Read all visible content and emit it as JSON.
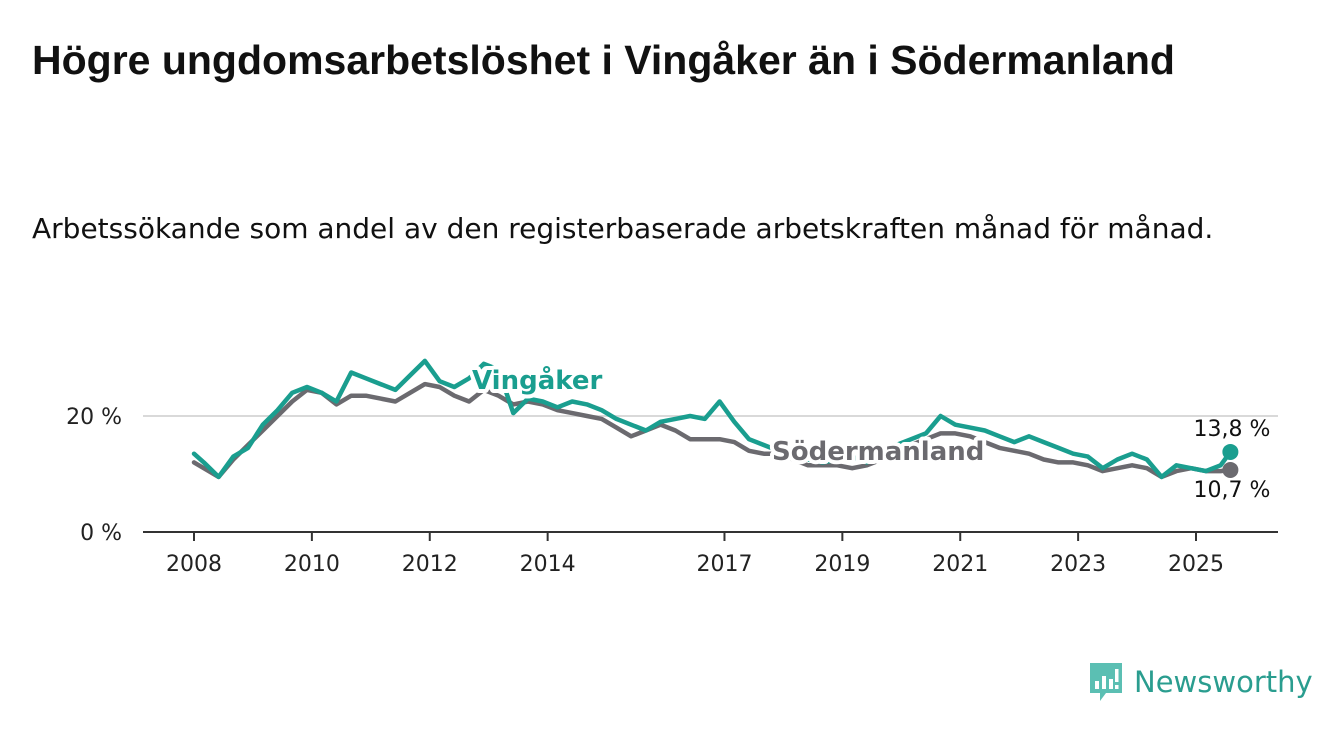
{
  "title": "Högre ungdomsarbetslöshet i Vingåker än i Södermanland",
  "subtitle": "Arbetssökande som andel av den registerbaserade arbetskraften månad för månad.",
  "brand": {
    "name": "Newsworthy",
    "icon": "newsworthy-logo-icon",
    "color": "#1a9e8f"
  },
  "chart_data": {
    "type": "line",
    "title": "Högre ungdomsarbetslöshet i Vingåker än i Södermanland",
    "subtitle": "Arbetssökande som andel av den registerbaserade arbetskraften månad för månad.",
    "xlabel": "",
    "ylabel": "",
    "xlim": [
      "2008-01",
      "2025-12"
    ],
    "ylim": [
      0,
      30
    ],
    "grid": "horizontal",
    "x_ticks": [
      "2008",
      "2010",
      "2012",
      "2014",
      "2017",
      "2019",
      "2021",
      "2023",
      "2025"
    ],
    "y_ticks": [
      {
        "value": 0,
        "label": "0 %"
      },
      {
        "value": 20,
        "label": "20 %"
      }
    ],
    "series": [
      {
        "name": "Vingåker",
        "color": "#1a9e8f",
        "end_label": "13,8 %",
        "x": [
          "2008-01",
          "2008-03",
          "2008-06",
          "2008-09",
          "2008-12",
          "2009-03",
          "2009-06",
          "2009-09",
          "2009-12",
          "2010-03",
          "2010-06",
          "2010-09",
          "2010-12",
          "2011-03",
          "2011-06",
          "2011-09",
          "2011-12",
          "2012-03",
          "2012-06",
          "2012-09",
          "2012-12",
          "2013-03",
          "2013-06",
          "2013-09",
          "2013-12",
          "2014-03",
          "2014-06",
          "2014-09",
          "2014-12",
          "2015-03",
          "2015-06",
          "2015-09",
          "2015-12",
          "2016-03",
          "2016-06",
          "2016-09",
          "2016-12",
          "2017-03",
          "2017-06",
          "2017-09",
          "2017-12",
          "2018-03",
          "2018-06",
          "2018-09",
          "2018-12",
          "2019-03",
          "2019-06",
          "2019-09",
          "2019-12",
          "2020-03",
          "2020-06",
          "2020-09",
          "2020-12",
          "2021-03",
          "2021-06",
          "2021-09",
          "2021-12",
          "2022-03",
          "2022-06",
          "2022-09",
          "2022-12",
          "2023-03",
          "2023-06",
          "2023-09",
          "2023-12",
          "2024-03",
          "2024-06",
          "2024-09",
          "2024-12",
          "2025-03",
          "2025-06",
          "2025-08"
        ],
        "values": [
          13.5,
          12.0,
          9.5,
          13.0,
          14.5,
          18.5,
          21.0,
          24.0,
          25.0,
          24.0,
          22.5,
          27.5,
          26.5,
          25.5,
          24.5,
          27.0,
          29.5,
          26.0,
          25.0,
          26.5,
          29.0,
          28.0,
          20.5,
          23.0,
          22.5,
          21.5,
          22.5,
          22.0,
          21.0,
          19.5,
          18.5,
          17.5,
          19.0,
          19.5,
          20.0,
          19.5,
          22.5,
          19.0,
          16.0,
          15.0,
          14.0,
          13.0,
          12.5,
          12.0,
          12.5,
          13.0,
          12.0,
          14.0,
          15.0,
          16.0,
          17.0,
          20.0,
          18.5,
          18.0,
          17.5,
          16.5,
          15.5,
          16.5,
          15.5,
          14.5,
          13.5,
          13.0,
          11.0,
          12.5,
          13.5,
          12.5,
          9.5,
          11.5,
          11.0,
          10.5,
          11.5,
          13.8
        ]
      },
      {
        "name": "Södermanland",
        "color": "#6b6a6f",
        "end_label": "10,7 %",
        "x": [
          "2008-01",
          "2008-03",
          "2008-06",
          "2008-09",
          "2008-12",
          "2009-03",
          "2009-06",
          "2009-09",
          "2009-12",
          "2010-03",
          "2010-06",
          "2010-09",
          "2010-12",
          "2011-03",
          "2011-06",
          "2011-09",
          "2011-12",
          "2012-03",
          "2012-06",
          "2012-09",
          "2012-12",
          "2013-03",
          "2013-06",
          "2013-09",
          "2013-12",
          "2014-03",
          "2014-06",
          "2014-09",
          "2014-12",
          "2015-03",
          "2015-06",
          "2015-09",
          "2015-12",
          "2016-03",
          "2016-06",
          "2016-09",
          "2016-12",
          "2017-03",
          "2017-06",
          "2017-09",
          "2017-12",
          "2018-03",
          "2018-06",
          "2018-09",
          "2018-12",
          "2019-03",
          "2019-06",
          "2019-09",
          "2019-12",
          "2020-03",
          "2020-06",
          "2020-09",
          "2020-12",
          "2021-03",
          "2021-06",
          "2021-09",
          "2021-12",
          "2022-03",
          "2022-06",
          "2022-09",
          "2022-12",
          "2023-03",
          "2023-06",
          "2023-09",
          "2023-12",
          "2024-03",
          "2024-06",
          "2024-09",
          "2024-12",
          "2025-03",
          "2025-06",
          "2025-08"
        ],
        "values": [
          12.0,
          11.0,
          9.5,
          12.5,
          15.0,
          17.5,
          20.0,
          22.5,
          24.5,
          24.0,
          22.0,
          23.5,
          23.5,
          23.0,
          22.5,
          24.0,
          25.5,
          25.0,
          23.5,
          22.5,
          24.5,
          23.5,
          22.0,
          22.5,
          22.0,
          21.0,
          20.5,
          20.0,
          19.5,
          18.0,
          16.5,
          17.5,
          18.5,
          17.5,
          16.0,
          16.0,
          16.0,
          15.5,
          14.0,
          13.5,
          13.5,
          12.5,
          11.5,
          11.5,
          11.5,
          11.0,
          11.5,
          12.5,
          14.0,
          15.0,
          16.0,
          17.0,
          17.0,
          16.5,
          15.5,
          14.5,
          14.0,
          13.5,
          12.5,
          12.0,
          12.0,
          11.5,
          10.5,
          11.0,
          11.5,
          11.0,
          9.5,
          10.5,
          11.0,
          10.5,
          10.5,
          10.7
        ]
      }
    ]
  }
}
